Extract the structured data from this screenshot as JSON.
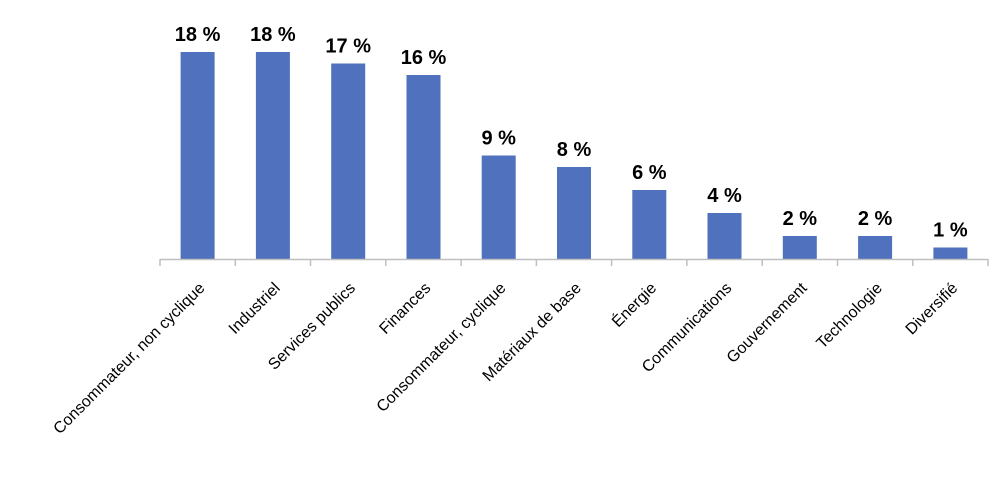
{
  "chart_data": {
    "type": "bar",
    "categories": [
      "Consommateur, non cyclique",
      "Industriel",
      "Services publics",
      "Finances",
      "Consommateur, cyclique",
      "Matériaux de base",
      "Énergie",
      "Communications",
      "Gouvernement",
      "Technologie",
      "Diversifié"
    ],
    "values": [
      18,
      18,
      17,
      16,
      9,
      8,
      6,
      4,
      2,
      2,
      1
    ],
    "data_labels": [
      "18 %",
      "18 %",
      "17 %",
      "16 %",
      "9 %",
      "8 %",
      "6 %",
      "4 %",
      "2 %",
      "2 %",
      "1 %"
    ],
    "bar_color": "#4F71BE",
    "axis_color": "#BFBFBF",
    "ylim": [
      0,
      18
    ],
    "grid": false,
    "legend": "none"
  }
}
